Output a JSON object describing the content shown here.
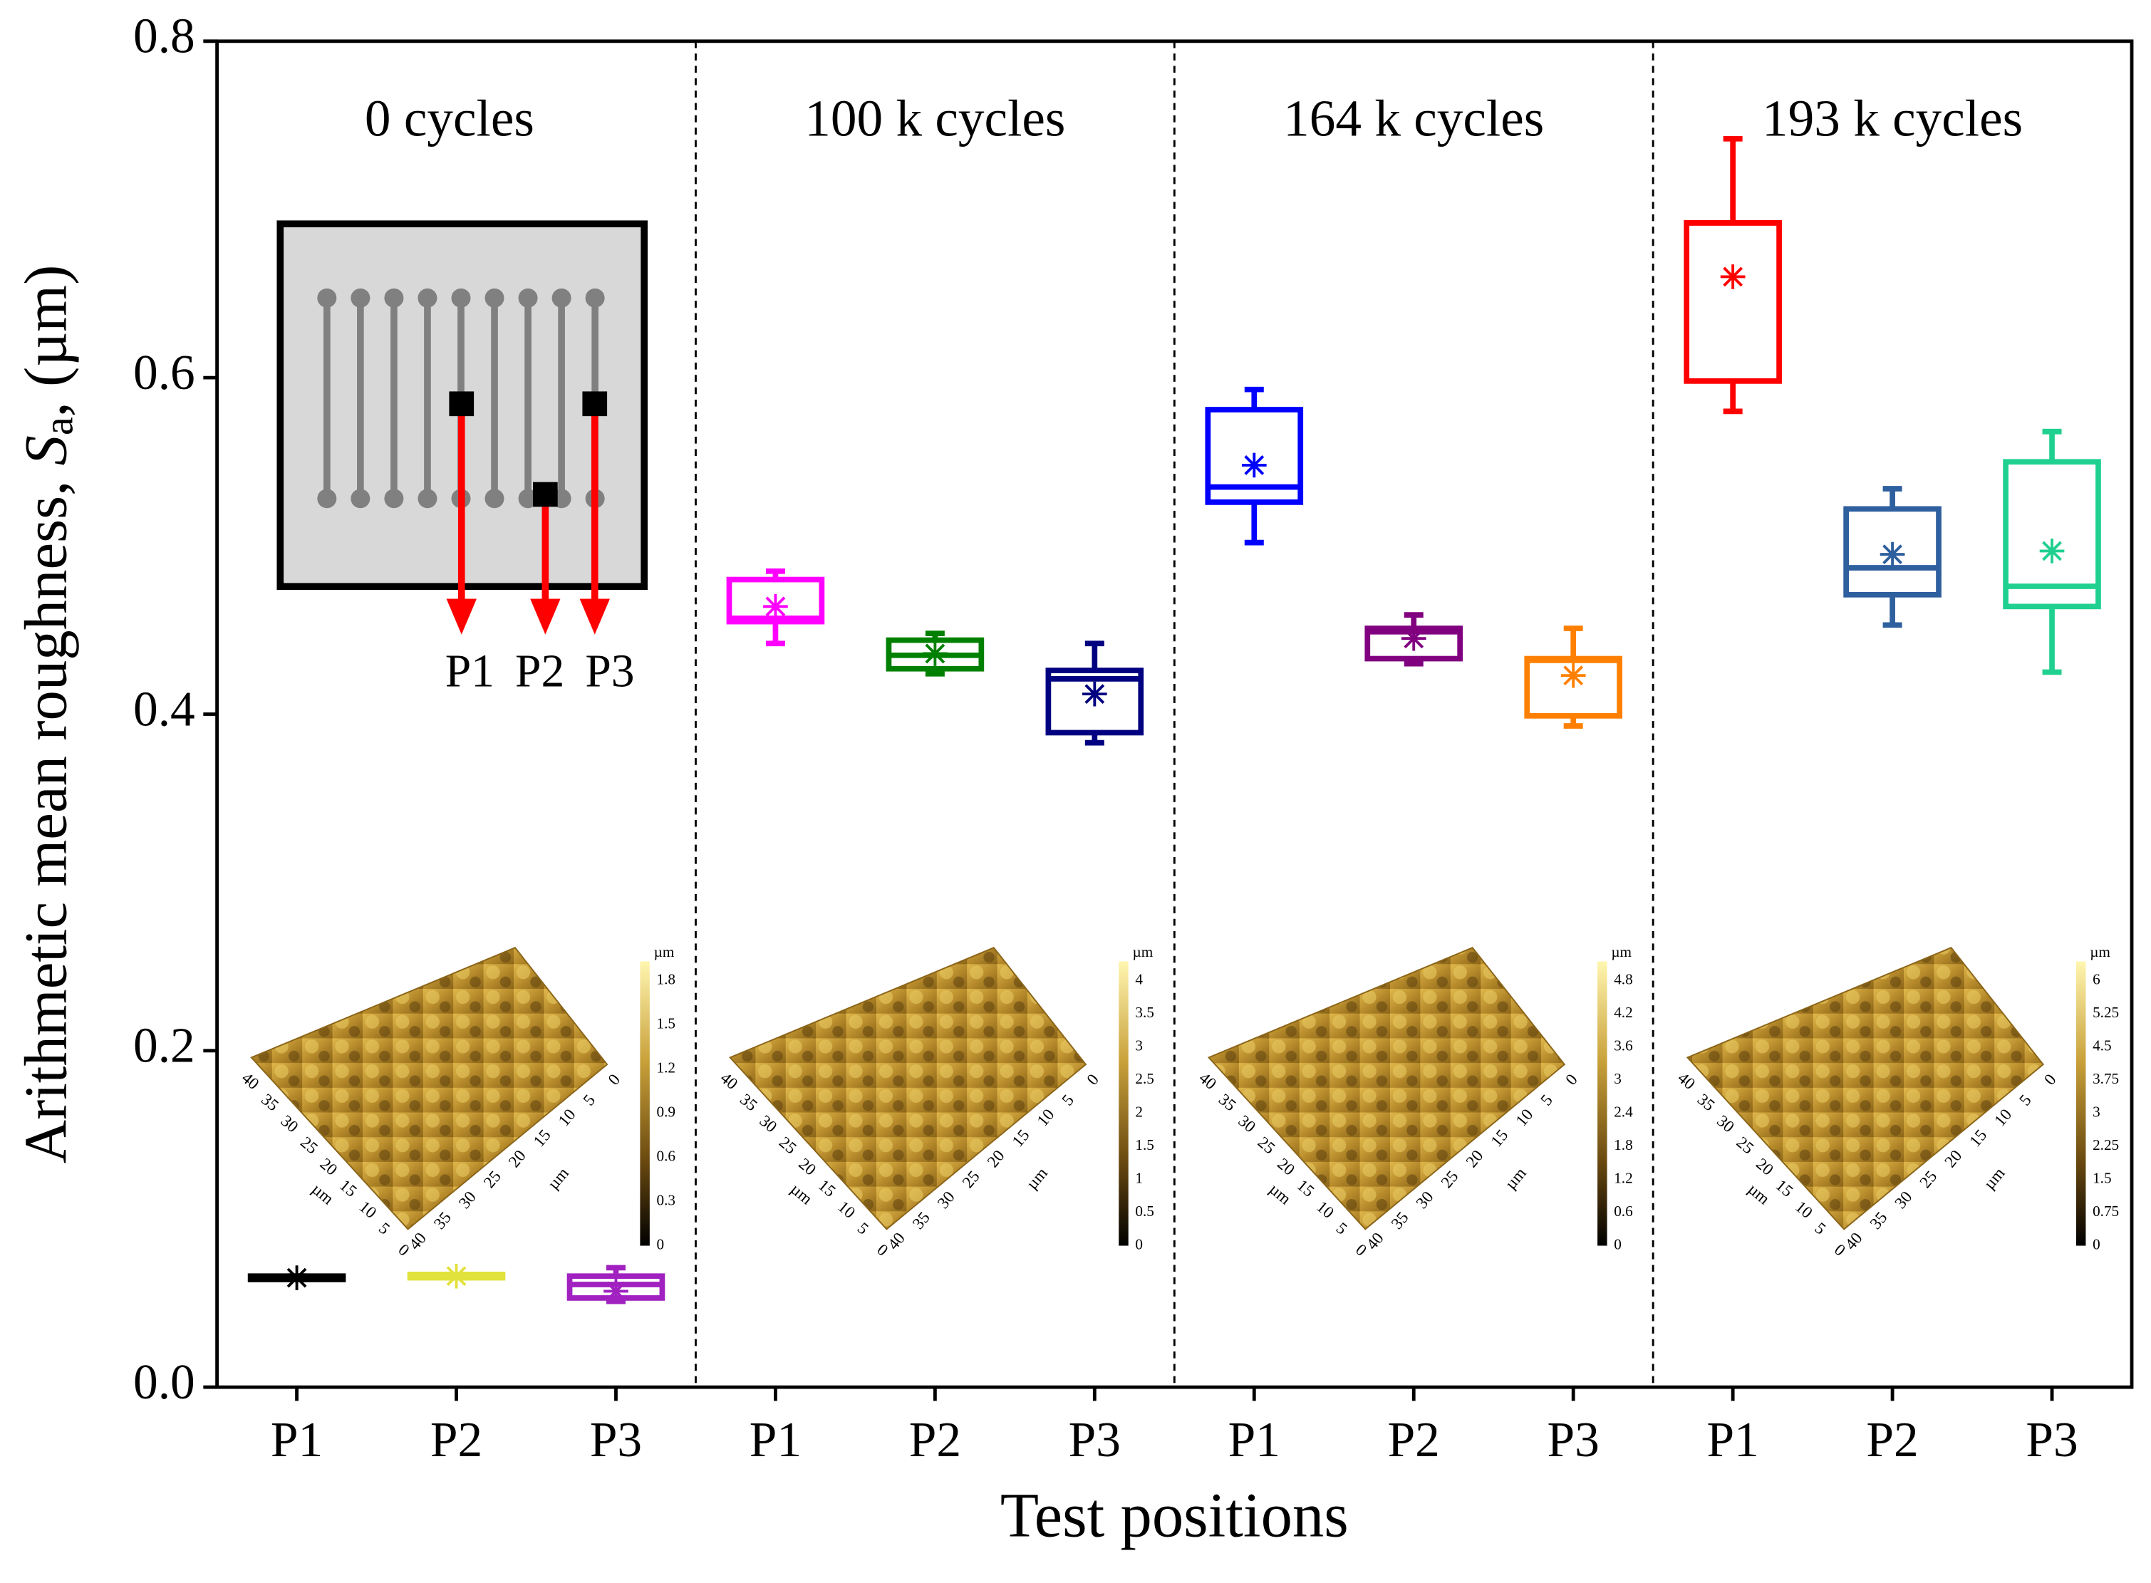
{
  "chart_data": {
    "type": "box",
    "xlabel": "Test positions",
    "ylabel_parts": [
      "Arithmetic mean roughness, ",
      "S",
      "a",
      ", (µm)"
    ],
    "ylim": [
      0,
      0.8
    ],
    "yticks": [
      {
        "value": 0,
        "label": "0.0"
      },
      0.2,
      0.4,
      0.6,
      0.8
    ],
    "groups": [
      "0 cycles",
      "100 k cycles",
      "164 k cycles",
      "193 k cycles"
    ],
    "categories": [
      "P1",
      "P2",
      "P3",
      "P1",
      "P2",
      "P3",
      "P1",
      "P2",
      "P3",
      "P1",
      "P2",
      "P3"
    ],
    "boxes": [
      {
        "color": "#000000",
        "whislo": 0.064,
        "q1": 0.064,
        "med": 0.065,
        "q3": 0.066,
        "whishi": 0.066,
        "mean": 0.065
      },
      {
        "color": "#e2e23c",
        "whislo": 0.065,
        "q1": 0.065,
        "med": 0.066,
        "q3": 0.067,
        "whishi": 0.067,
        "mean": 0.066
      },
      {
        "color": "#a020c0",
        "whislo": 0.051,
        "q1": 0.053,
        "med": 0.061,
        "q3": 0.066,
        "whishi": 0.071,
        "mean": 0.057
      },
      {
        "color": "#ff00ff",
        "whislo": 0.442,
        "q1": 0.455,
        "med": 0.457,
        "q3": 0.48,
        "whishi": 0.485,
        "mean": 0.464
      },
      {
        "color": "#008000",
        "whislo": 0.424,
        "q1": 0.427,
        "med": 0.435,
        "q3": 0.444,
        "whishi": 0.448,
        "mean": 0.436
      },
      {
        "color": "#000080",
        "whislo": 0.383,
        "q1": 0.389,
        "med": 0.421,
        "q3": 0.426,
        "whishi": 0.442,
        "mean": 0.412
      },
      {
        "color": "#0000ff",
        "whislo": 0.502,
        "q1": 0.526,
        "med": 0.535,
        "q3": 0.581,
        "whishi": 0.593,
        "mean": 0.548
      },
      {
        "color": "#800080",
        "whislo": 0.43,
        "q1": 0.433,
        "med": 0.449,
        "q3": 0.451,
        "whishi": 0.459,
        "mean": 0.445
      },
      {
        "color": "#ff8000",
        "whislo": 0.393,
        "q1": 0.399,
        "med": 0.432,
        "q3": 0.433,
        "whishi": 0.451,
        "mean": 0.423
      },
      {
        "color": "#ff0000",
        "whislo": 0.58,
        "q1": 0.598,
        "med": 0.692,
        "q3": 0.692,
        "whishi": 0.742,
        "mean": 0.66
      },
      {
        "color": "#2e5f9e",
        "whislo": 0.453,
        "q1": 0.471,
        "med": 0.487,
        "q3": 0.522,
        "whishi": 0.534,
        "mean": 0.495
      },
      {
        "color": "#20d090",
        "whislo": 0.425,
        "q1": 0.464,
        "med": 0.476,
        "q3": 0.55,
        "whishi": 0.568,
        "mean": 0.497
      }
    ],
    "inset_labels": [
      "P1",
      "P2",
      "P3"
    ],
    "afm_insets": [
      {
        "unit": "µm",
        "colorbar_ticks": [
          0,
          0.3,
          0.6,
          0.9,
          1.2,
          1.5,
          1.8
        ],
        "xy_ticks": [
          40,
          35,
          30,
          25,
          20,
          15,
          10,
          5,
          0
        ]
      },
      {
        "unit": "µm",
        "colorbar_ticks": [
          0,
          0.5,
          1,
          1.5,
          2,
          2.5,
          3,
          3.5,
          4
        ],
        "xy_ticks": [
          40,
          35,
          30,
          25,
          20,
          15,
          10,
          5,
          0
        ]
      },
      {
        "unit": "µm",
        "colorbar_ticks": [
          0,
          0.6,
          1.2,
          1.8,
          2.4,
          3,
          3.6,
          4.2,
          4.8
        ],
        "xy_ticks": [
          40,
          35,
          30,
          25,
          20,
          15,
          10,
          5,
          0
        ]
      },
      {
        "unit": "µm",
        "colorbar_ticks": [
          0,
          0.75,
          1.5,
          2.25,
          3,
          3.75,
          4.5,
          5.25,
          6
        ],
        "xy_ticks": [
          40,
          35,
          30,
          25,
          20,
          15,
          10,
          5,
          0
        ]
      }
    ]
  }
}
